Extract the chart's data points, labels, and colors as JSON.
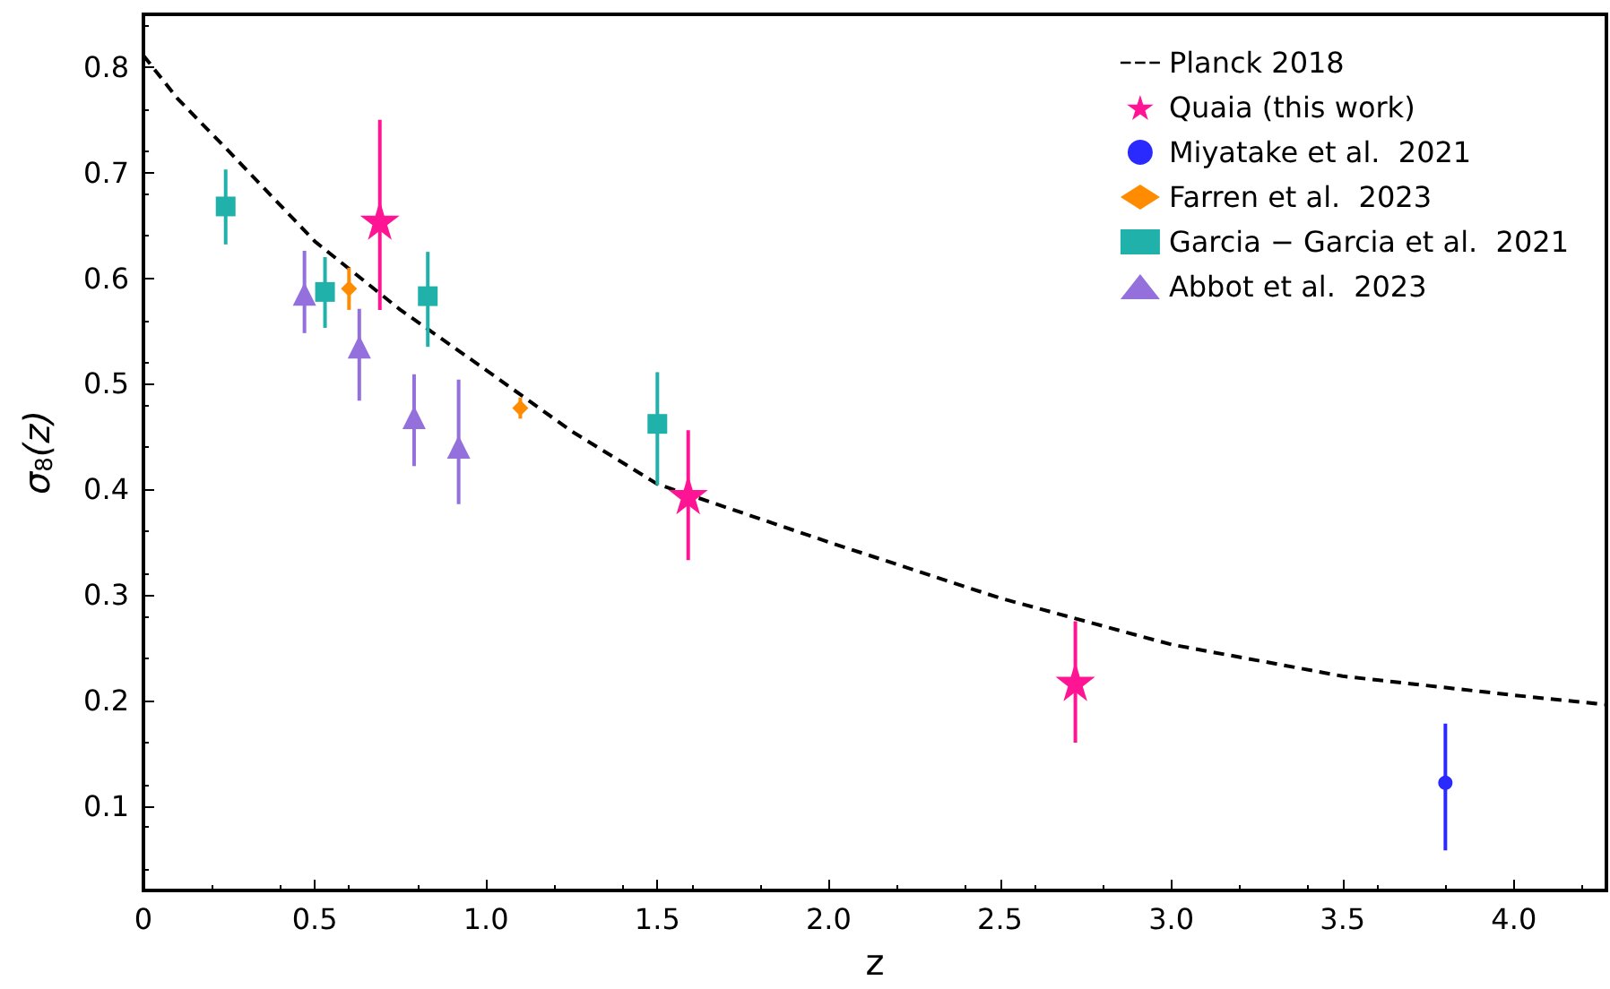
{
  "chart_data": {
    "type": "scatter",
    "xlabel": "z",
    "ylabel": "σ$_{8}$(z)",
    "xlim": [
      0,
      4.27
    ],
    "ylim": [
      0.02,
      0.85
    ],
    "xticks": [
      0,
      {
        "value": 0.5,
        "label": "0.5"
      },
      {
        "value": 1,
        "label": "1.0"
      },
      {
        "value": 1.5,
        "label": "1.5"
      },
      {
        "value": 2,
        "label": "2.0"
      },
      {
        "value": 2.5,
        "label": "2.5"
      },
      {
        "value": 3,
        "label": "3.0"
      },
      {
        "value": 3.5,
        "label": "3.5"
      },
      {
        "value": 4,
        "label": "4.0"
      }
    ],
    "yticks": [
      0.1,
      0.2,
      0.3,
      0.4,
      0.5,
      0.6,
      0.7,
      0.8
    ],
    "grid": false,
    "legend": "top right",
    "series": [
      {
        "name": "Planck 2018",
        "type": "line",
        "line_style": "dashed",
        "marker": "none",
        "color": "#000000",
        "x": [
          0,
          0.1,
          0.25,
          0.5,
          0.75,
          1.0,
          1.25,
          1.5,
          2.0,
          2.5,
          3.0,
          3.5,
          4.0,
          4.27
        ],
        "values": [
          0.811,
          0.77,
          0.72,
          0.635,
          0.57,
          0.513,
          0.455,
          0.405,
          0.35,
          0.297,
          0.253,
          0.223,
          0.205,
          0.196
        ]
      },
      {
        "name": "Quaia (this work)",
        "marker": "star",
        "color": "#ff1493",
        "x": [
          0.69,
          1.59,
          2.72
        ],
        "values": [
          0.655,
          0.395,
          0.218
        ],
        "errors": [
          [
            0.57,
            0.75
          ],
          [
            0.333,
            0.456
          ],
          [
            0.16,
            0.275
          ]
        ]
      },
      {
        "name": "Miyatake et al.  2021",
        "marker": "circle",
        "color": "#2a2aff",
        "x": [
          3.8
        ],
        "values": [
          0.122
        ],
        "errors": [
          [
            0.058,
            0.178
          ]
        ]
      },
      {
        "name": "Farren et al.  2023",
        "marker": "diamond",
        "color": "#ff8c00",
        "x": [
          0.6,
          1.1
        ],
        "values": [
          0.59,
          0.477
        ],
        "errors": [
          [
            0.57,
            0.61
          ],
          [
            0.467,
            0.487
          ]
        ]
      },
      {
        "name": "Garcia − Garcia et al.  2021",
        "marker": "square",
        "color": "#20b2aa",
        "x": [
          0.24,
          0.53,
          0.83,
          1.5
        ],
        "values": [
          0.668,
          0.587,
          0.583,
          0.462
        ],
        "errors": [
          [
            0.632,
            0.703
          ],
          [
            0.553,
            0.62
          ],
          [
            0.535,
            0.625
          ],
          [
            0.404,
            0.511
          ]
        ]
      },
      {
        "name": "Abbot et al.  2023",
        "marker": "triangle",
        "color": "#9370db",
        "x": [
          0.47,
          0.63,
          0.79,
          0.92
        ],
        "values": [
          0.585,
          0.535,
          0.468,
          0.44
        ],
        "errors": [
          [
            0.548,
            0.626
          ],
          [
            0.484,
            0.571
          ],
          [
            0.422,
            0.509
          ],
          [
            0.386,
            0.504
          ]
        ]
      }
    ]
  }
}
